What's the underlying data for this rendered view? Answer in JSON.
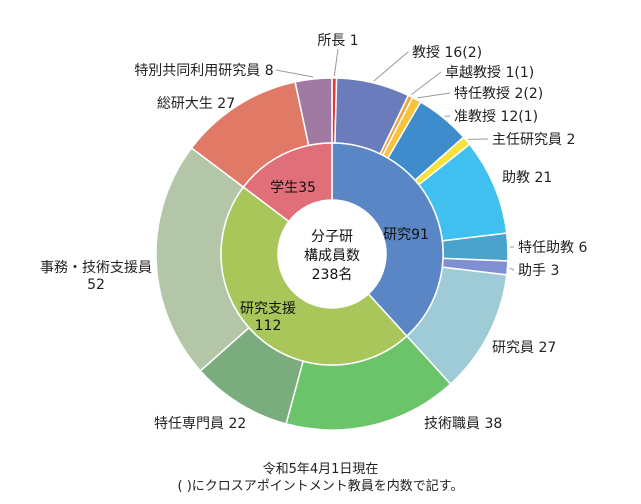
{
  "chart_data": {
    "type": "pie",
    "center": {
      "line1": "分子研",
      "line2": "構成員数",
      "line3": "238名"
    },
    "inner": [
      {
        "label": "研究91",
        "value": 91,
        "color": "#5a86c5"
      },
      {
        "label_line1": "研究支援",
        "label_line2": "112",
        "value": 112,
        "color": "#a9c65a"
      },
      {
        "label": "学生35",
        "value": 35,
        "color": "#e06f7a"
      }
    ],
    "outer": [
      {
        "label": "所長 1",
        "value": 1,
        "color": "#e23a3a"
      },
      {
        "label": "教授 16(2)",
        "value": 16,
        "color": "#6a7cbc"
      },
      {
        "label": "卓越教授 1(1)",
        "value": 1,
        "color": "#f2a33a"
      },
      {
        "label": "特任教授 2(2)",
        "value": 2,
        "color": "#f7c23c"
      },
      {
        "label": "准教授 12(1)",
        "value": 12,
        "color": "#3e8ccc"
      },
      {
        "label": "主任研究員 2",
        "value": 2,
        "color": "#f6e23a"
      },
      {
        "label": "助教 21",
        "value": 21,
        "color": "#3fc0ee"
      },
      {
        "label": "特任助教 6",
        "value": 6,
        "color": "#4aa3cc"
      },
      {
        "label": "助手 3",
        "value": 3,
        "color": "#7f8fd1"
      },
      {
        "label": "研究員 27",
        "value": 27,
        "color": "#9ecbd6"
      },
      {
        "label": "技術職員 38",
        "value": 38,
        "color": "#6cc46a"
      },
      {
        "label": "特任専門員 22",
        "value": 22,
        "color": "#7aac7e"
      },
      {
        "label_line1": "事務・技術支援員",
        "label_line2": "52",
        "value": 52,
        "color": "#b4c6a8"
      },
      {
        "label": "総研大生 27",
        "value": 27,
        "color": "#e07a66"
      },
      {
        "label": "特別共同利用研究員 8",
        "value": 8,
        "color": "#a07aa3"
      }
    ]
  },
  "footer": {
    "line1": "令和5年4月1日現在",
    "line2": "( )にクロスアポイントメント教員を内数で記す。"
  }
}
